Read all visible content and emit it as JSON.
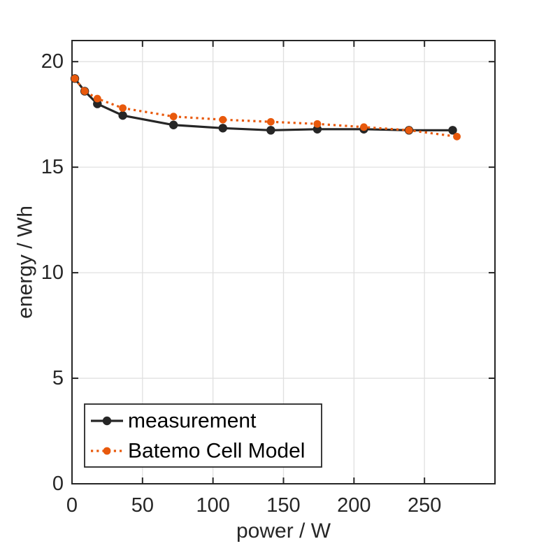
{
  "figure": {
    "background": "#ffffff"
  },
  "chart_data": {
    "type": "line",
    "title": "",
    "xlabel": "power / W",
    "ylabel": "energy / Wh",
    "xlim": [
      0,
      300
    ],
    "ylim": [
      0,
      21
    ],
    "xticks": [
      0,
      50,
      100,
      150,
      200,
      250
    ],
    "yticks": [
      0,
      5,
      10,
      15,
      20
    ],
    "grid": true,
    "legend_position": "inside-bottom-left",
    "series": [
      {
        "name": "measurement",
        "color": "#262626",
        "line_style": "solid",
        "marker": "circle",
        "x": [
          2,
          9,
          18,
          36,
          72,
          107,
          141,
          174,
          207,
          239,
          270
        ],
        "y": [
          19.2,
          18.6,
          18.0,
          17.45,
          17.0,
          16.85,
          16.75,
          16.8,
          16.8,
          16.75,
          16.75
        ]
      },
      {
        "name": "Batemo Cell Model",
        "color": "#E8590C",
        "line_style": "dotted",
        "marker": "circle",
        "x": [
          2,
          9,
          18,
          36,
          72,
          107,
          141,
          174,
          207,
          239,
          273
        ],
        "y": [
          19.2,
          18.6,
          18.25,
          17.8,
          17.4,
          17.25,
          17.15,
          17.05,
          16.9,
          16.75,
          16.45
        ]
      }
    ],
    "colors": {
      "grid": "#e0e0e0",
      "axis": "#262626",
      "text": "#262626",
      "background": "#ffffff"
    }
  }
}
